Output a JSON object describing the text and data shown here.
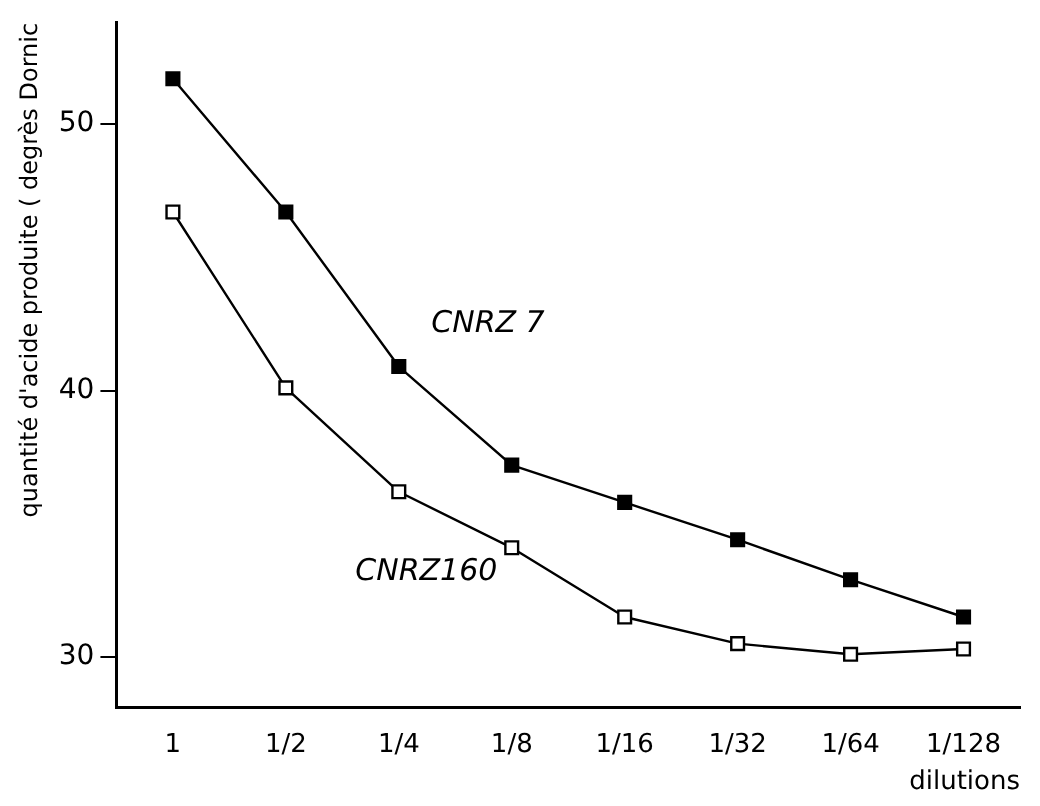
{
  "chart_data": {
    "type": "line",
    "ylabel": "quantité d'acide produite ( degrès Dornic",
    "xlabel": "dilutions",
    "categories": [
      "1",
      "1/2",
      "1/4",
      "1/8",
      "1/16",
      "1/32",
      "1/64",
      "1/128"
    ],
    "series": [
      {
        "name": "CNRZ 7",
        "color": "#000000",
        "values": [
          51.7,
          46.7,
          40.9,
          37.2,
          35.8,
          34.4,
          32.9,
          31.5
        ]
      },
      {
        "name": "CNRZ160",
        "color": "#000000",
        "values": [
          46.7,
          40.1,
          36.2,
          34.1,
          31.5,
          30.5,
          30.1,
          30.3
        ]
      }
    ],
    "ylim": [
      28.1,
      53.8
    ],
    "yticks": [
      30,
      40,
      50
    ],
    "grid": false,
    "legend": false,
    "marker": "square",
    "line_style": "solid"
  }
}
